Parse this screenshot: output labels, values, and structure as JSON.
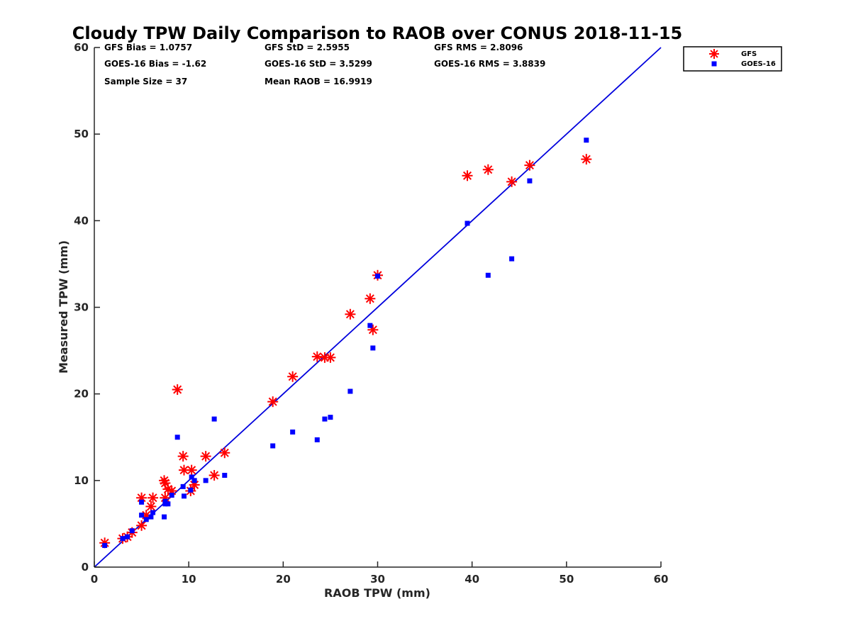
{
  "chart_data": {
    "type": "scatter",
    "title": "Cloudy TPW Daily Comparison to RAOB over CONUS 2018-11-15",
    "xlabel": "RAOB TPW (mm)",
    "ylabel": "Measured TPW (mm)",
    "xlim": [
      0,
      60
    ],
    "ylim": [
      0,
      60
    ],
    "xticks": [
      "0",
      "10",
      "20",
      "30",
      "40",
      "50",
      "60"
    ],
    "yticks": [
      "0",
      "10",
      "20",
      "30",
      "40",
      "50",
      "60"
    ],
    "grid": false,
    "legend_position": "top-right (outside plot)",
    "reference_line": {
      "name": "1:1 line",
      "x": [
        0,
        60
      ],
      "y": [
        0,
        60
      ],
      "color": "#0000dd"
    },
    "stats": [
      {
        "label": "GFS Bias = 1.0757"
      },
      {
        "label": "GFS StD = 2.5955"
      },
      {
        "label": "GFS RMS = 2.8096"
      },
      {
        "label": "GOES-16 Bias = -1.62"
      },
      {
        "label": "GOES-16 StD = 3.5299"
      },
      {
        "label": "GOES-16 RMS = 3.8839"
      },
      {
        "label": "Sample Size = 37"
      },
      {
        "label": "Mean RAOB = 16.9919"
      }
    ],
    "series": [
      {
        "name": "GFS",
        "marker": "asterisk",
        "color": "#ff0000",
        "x": [
          1.1,
          3.0,
          3.5,
          4.0,
          5.0,
          5.0,
          5.5,
          6.0,
          6.2,
          7.4,
          7.5,
          7.5,
          7.8,
          8.2,
          8.8,
          9.4,
          9.5,
          10.2,
          10.3,
          10.6,
          11.8,
          12.7,
          13.8,
          18.9,
          21.0,
          23.6,
          24.4,
          25.0,
          27.1,
          29.2,
          29.5,
          30.0,
          39.5,
          41.7,
          44.2,
          46.1,
          52.1
        ],
        "y": [
          2.8,
          3.3,
          3.5,
          4.0,
          8.0,
          4.8,
          6.0,
          7.0,
          8.0,
          10.0,
          9.7,
          8.0,
          9.0,
          8.8,
          20.5,
          12.8,
          11.2,
          8.8,
          11.2,
          9.5,
          12.8,
          10.6,
          13.2,
          19.1,
          22.0,
          24.3,
          24.2,
          24.2,
          29.2,
          31.0,
          27.4,
          33.7,
          45.2,
          45.9,
          44.5,
          46.4,
          47.1
        ]
      },
      {
        "name": "GOES-16",
        "marker": "square",
        "color": "#0000ff",
        "x": [
          1.1,
          3.0,
          3.5,
          4.0,
          5.0,
          5.0,
          5.5,
          6.0,
          6.2,
          7.4,
          7.5,
          7.5,
          7.8,
          8.2,
          8.8,
          9.4,
          9.5,
          10.2,
          10.3,
          10.6,
          11.8,
          12.7,
          13.8,
          18.9,
          21.0,
          23.6,
          24.4,
          25.0,
          27.1,
          29.2,
          29.5,
          30.0,
          39.5,
          41.7,
          44.2,
          46.1,
          52.1
        ],
        "y": [
          2.5,
          3.3,
          3.5,
          4.2,
          7.5,
          6.0,
          5.5,
          5.8,
          6.3,
          5.8,
          7.6,
          7.3,
          7.3,
          8.3,
          15.0,
          9.3,
          8.2,
          8.9,
          10.4,
          10.0,
          10.0,
          17.1,
          10.6,
          14.0,
          15.6,
          14.7,
          17.1,
          17.3,
          20.3,
          27.9,
          25.3,
          33.6,
          39.7,
          33.7,
          35.6,
          44.6,
          49.3
        ]
      }
    ]
  }
}
